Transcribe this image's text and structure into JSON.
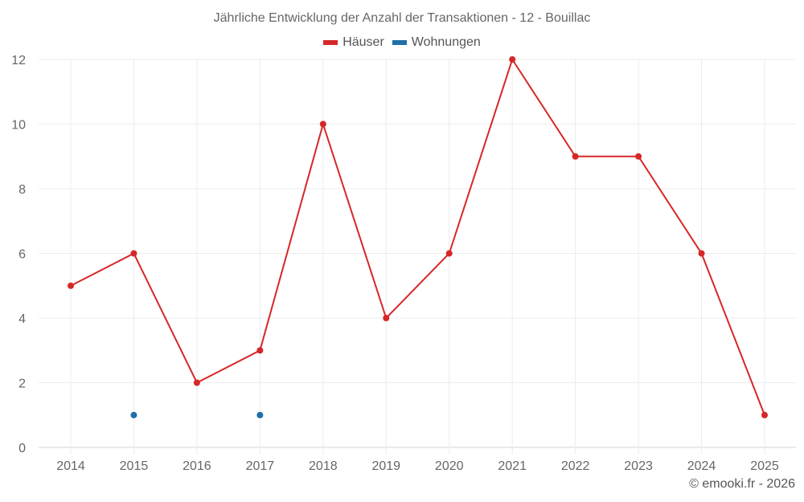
{
  "chart_data": {
    "type": "line",
    "title": "Jährliche Entwicklung der Anzahl der Transaktionen - 12 - Bouillac",
    "xlabel": "",
    "ylabel": "",
    "categories": [
      "2014",
      "2015",
      "2016",
      "2017",
      "2018",
      "2019",
      "2020",
      "2021",
      "2022",
      "2023",
      "2024",
      "2025"
    ],
    "series": [
      {
        "name": "Häuser",
        "color": "#d62728",
        "values": [
          5,
          6,
          2,
          3,
          10,
          4,
          6,
          12,
          9,
          9,
          6,
          1
        ]
      },
      {
        "name": "Wohnungen",
        "color": "#1f6fa8",
        "values": [
          null,
          1,
          null,
          1,
          null,
          null,
          null,
          null,
          null,
          null,
          null,
          null
        ]
      }
    ],
    "ylim": [
      0,
      12
    ],
    "yticks": [
      0,
      2,
      4,
      6,
      8,
      10,
      12
    ],
    "grid": true,
    "legend_position": "top"
  },
  "header": {
    "title": "Jährliche Entwicklung der Anzahl der Transaktionen - 12 - Bouillac"
  },
  "legend": {
    "items": [
      {
        "label": "Häuser",
        "color": "#d62728"
      },
      {
        "label": "Wohnungen",
        "color": "#1f6fa8"
      }
    ]
  },
  "footer": {
    "credit": "© emooki.fr - 2026"
  }
}
